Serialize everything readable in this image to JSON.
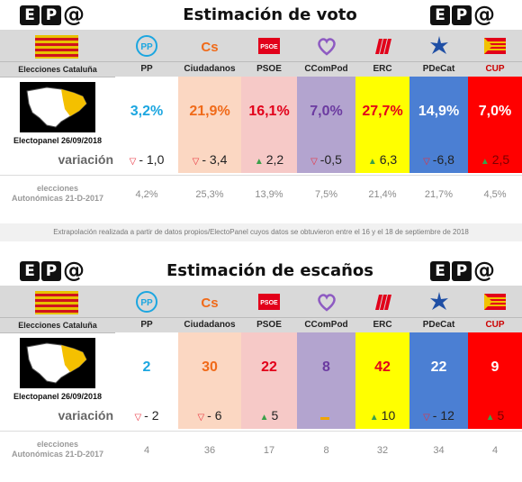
{
  "parties": [
    {
      "id": "pp",
      "name": "PP",
      "bg": "#ffffff",
      "color": "#1ca6e0",
      "icon": "pp-logo-icon"
    },
    {
      "id": "cs",
      "name": "Ciudadanos",
      "bg": "#fbd7c2",
      "color": "#f06a19",
      "icon": "cs-logo-icon"
    },
    {
      "id": "psoe",
      "name": "PSOE",
      "bg": "#f6c9c7",
      "color": "#e2001a",
      "icon": "psoe-logo-icon"
    },
    {
      "id": "ccompod",
      "name": "CComPod",
      "bg": "#b3a4cf",
      "color": "#6b3aa0",
      "icon": "heart-logo-icon"
    },
    {
      "id": "erc",
      "name": "ERC",
      "bg": "#ffff00",
      "color": "#e2001a",
      "icon": "erc-logo-icon"
    },
    {
      "id": "pdecat",
      "name": "PDeCat",
      "bg": "#4b7fd3",
      "color": "#ffffff",
      "icon": "star-logo-icon"
    },
    {
      "id": "cup",
      "name": "CUP",
      "bg": "#ff0000",
      "color": "#ffffff",
      "icon": "cup-flag-icon"
    }
  ],
  "left": {
    "region": "Elecciones Cataluña",
    "poll": "Electopanel 26/09/2018",
    "change_label": "variación",
    "prev_label_1": "elecciones",
    "prev_label_2": "Autonómicas 21-D-2017"
  },
  "vote_panel": {
    "title": "Estimación de voto",
    "note": "Extrapolación realizada a partir de datos propios/ElectoPanel cuyos datos se obtuvieron entre el 16 y el 18 de septiembre de 2018"
  },
  "seats_panel": {
    "title": "Estimación de escaños"
  },
  "logo": {
    "e": "E",
    "p": "P",
    "at": "@"
  },
  "colors": {
    "up": "#3aa04a",
    "down": "#e8303c",
    "flat": "#f0a500"
  },
  "chart_data": [
    {
      "type": "table",
      "title": "Estimación de voto",
      "categories": [
        "PP",
        "Ciudadanos",
        "PSOE",
        "CComPod",
        "ERC",
        "PDeCat",
        "CUP"
      ],
      "series": [
        {
          "name": "Electopanel 26/09/2018",
          "values": [
            "3,2%",
            "21,9%",
            "16,1%",
            "7,0%",
            "27,7%",
            "14,9%",
            "7,0%"
          ]
        },
        {
          "name": "variación",
          "values": [
            "- 1,0",
            "- 3,4",
            "2,2",
            "-0,5",
            "6,3",
            "-6,8",
            "2,5"
          ],
          "direction": [
            "down",
            "down",
            "up",
            "down",
            "up",
            "down",
            "up"
          ]
        },
        {
          "name": "elecciones Autonómicas 21-D-2017",
          "values": [
            "4,2%",
            "25,3%",
            "13,9%",
            "7,5%",
            "21,4%",
            "21,7%",
            "4,5%"
          ]
        }
      ]
    },
    {
      "type": "table",
      "title": "Estimación de escaños",
      "categories": [
        "PP",
        "Ciudadanos",
        "PSOE",
        "CComPod",
        "ERC",
        "PDeCat",
        "CUP"
      ],
      "series": [
        {
          "name": "Electopanel 26/09/2018",
          "values": [
            "2",
            "30",
            "22",
            "8",
            "42",
            "22",
            "9"
          ]
        },
        {
          "name": "variación",
          "values": [
            "- 2",
            "- 6",
            "5",
            "",
            "10",
            "- 12",
            "5"
          ],
          "direction": [
            "down",
            "down",
            "up",
            "flat",
            "up",
            "down",
            "up"
          ]
        },
        {
          "name": "elecciones Autonómicas 21-D-2017",
          "values": [
            "4",
            "36",
            "17",
            "8",
            "32",
            "34",
            "4"
          ]
        }
      ]
    }
  ]
}
